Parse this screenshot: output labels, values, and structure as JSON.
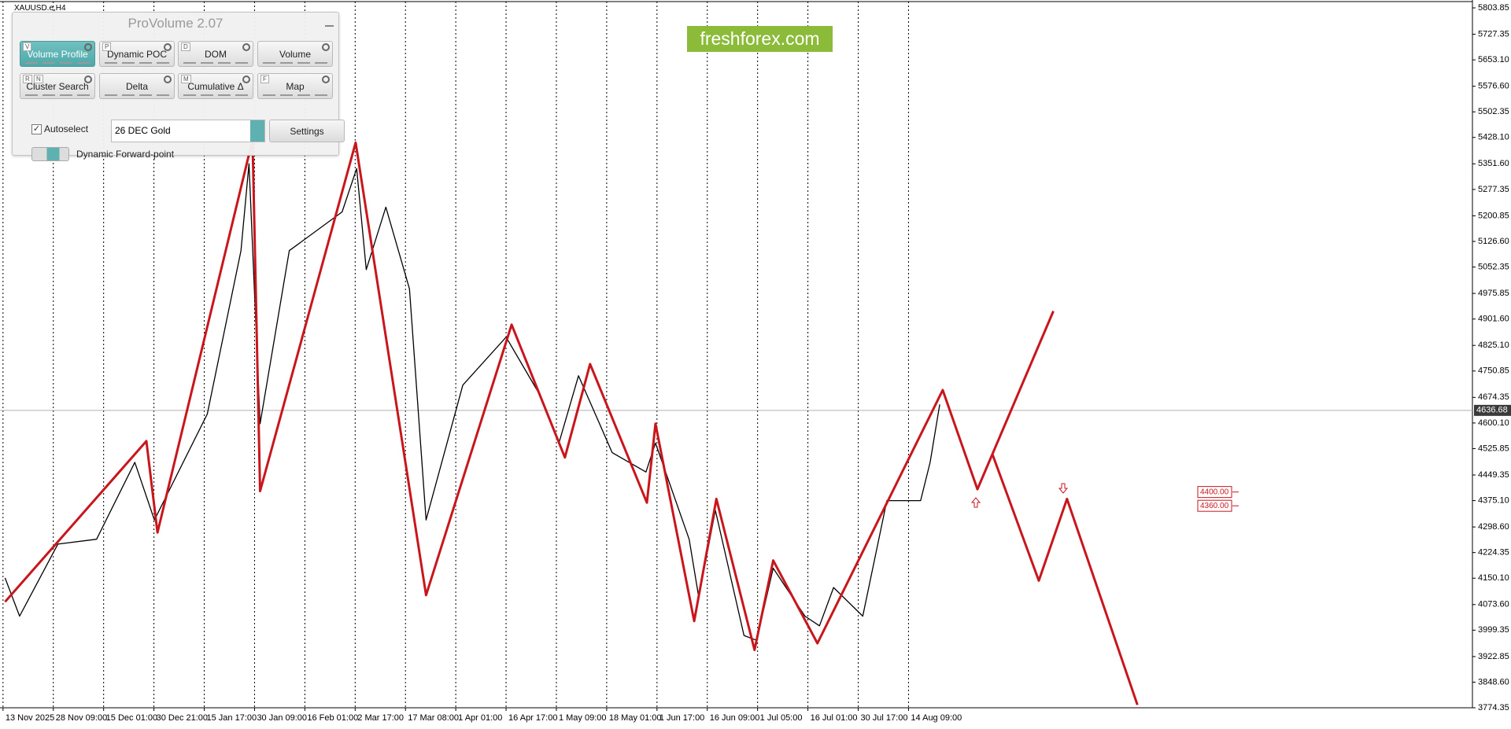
{
  "symbol": "XAUUSD.e,H4",
  "watermark": "freshforex.com",
  "panel": {
    "title": "ProVolume 2.07",
    "buttons": [
      {
        "keys": [
          "V"
        ],
        "label": "Volume Profile"
      },
      {
        "keys": [
          "P"
        ],
        "label": "Dynamic POC"
      },
      {
        "keys": [
          "D"
        ],
        "label": "DOM"
      },
      {
        "label": "Volume"
      },
      {
        "keys": [
          "R",
          "N"
        ],
        "label": "Cluster Search"
      },
      {
        "label": "Delta"
      },
      {
        "keys": [
          "M"
        ],
        "label": "Cumulative Δ"
      },
      {
        "keys": [
          "F"
        ],
        "label": "Map"
      }
    ],
    "autoselect": "Autoselect",
    "instrument": "26 DEC Gold",
    "settings": "Settings",
    "forward": "Dynamic Forward-point"
  },
  "chart_data": {
    "type": "line",
    "xlim": [
      -0.06,
      29.21
    ],
    "xticks": [
      {
        "value": 0,
        "label": "13 Nov 2025"
      },
      {
        "value": 1,
        "label": "28 Nov 09:00"
      },
      {
        "value": 2,
        "label": "15 Dec 01:00"
      },
      {
        "value": 3,
        "label": "30 Dec 21:00"
      },
      {
        "value": 4,
        "label": "15 Jan 17:00"
      },
      {
        "value": 5,
        "label": "30 Jan 09:00"
      },
      {
        "value": 6,
        "label": "16 Feb 01:00"
      },
      {
        "value": 7,
        "label": "2 Mar 17:00"
      },
      {
        "value": 8,
        "label": "17 Mar 08:00"
      },
      {
        "value": 9,
        "label": "1 Apr 01:00"
      },
      {
        "value": 10,
        "label": "16 Apr 17:00"
      },
      {
        "value": 11,
        "label": "1 May 09:00"
      },
      {
        "value": 12,
        "label": "18 May 01:00"
      },
      {
        "value": 13,
        "label": "1 Jun 17:00"
      },
      {
        "value": 14,
        "label": "16 Jun 09:00"
      },
      {
        "value": 15,
        "label": "1 Jul 05:00"
      },
      {
        "value": 16,
        "label": "16 Jul 01:00"
      },
      {
        "value": 17,
        "label": "30 Jul 17:00"
      },
      {
        "value": 18,
        "label": "14 Aug 09:00"
      }
    ],
    "ylim": [
      3774.35,
      5803.85
    ],
    "yticks": [
      5803.85,
      5727.35,
      {
        "value": 5653.1,
        "label": "5653.10"
      },
      {
        "value": 5576.6,
        "label": "5576.60"
      },
      5502.35,
      {
        "value": 5428.1,
        "label": "5428.10"
      },
      {
        "value": 5351.6,
        "label": "5351.60"
      },
      5277.35,
      5200.85,
      {
        "value": 5126.6,
        "label": "5126.60"
      },
      5052.35,
      4975.85,
      {
        "value": 4901.6,
        "label": "4901.60"
      },
      {
        "value": 4825.1,
        "label": "4825.10"
      },
      4750.85,
      4674.35,
      {
        "value": 4600.1,
        "label": "4600.10"
      },
      4525.85,
      4449.35,
      {
        "value": 4375.1,
        "label": "4375.10"
      },
      {
        "value": 4298.6,
        "label": "4298.60"
      },
      4224.35,
      {
        "value": 4150.1,
        "label": "4150.10"
      },
      {
        "value": 4073.6,
        "label": "4073.60"
      },
      3999.35,
      3922.85,
      {
        "value": 3848.6,
        "label": "3848.60"
      },
      3774.35
    ],
    "current_price": 4636.68,
    "levels": [
      {
        "value": 4400,
        "label": "4400.00"
      },
      {
        "value": 4360,
        "label": "4360.00"
      }
    ],
    "grid": true,
    "series": [
      {
        "color": "#000000",
        "x": [
          0.04,
          0.33,
          1.09,
          1.86,
          2.62,
          3.01,
          4.06,
          4.73,
          4.89,
          5.11,
          5.69,
          6.74,
          7.03,
          7.22,
          7.61,
          8.08,
          8.41,
          9.14,
          10.0,
          10.67,
          11.05,
          11.44,
          12.11,
          12.78,
          12.97,
          13.64,
          13.83,
          14.16,
          14.73,
          14.98,
          15.31,
          15.94,
          16.23,
          16.51,
          17.09,
          17.57,
          18.24,
          18.43,
          18.62
        ],
        "values": [
          4151,
          4040,
          4249,
          4263,
          4486,
          4319,
          4626,
          5100,
          5352,
          4598,
          5100,
          5212,
          5338,
          5045,
          5226,
          4989,
          4319,
          4710,
          4849,
          4682,
          4542,
          4737,
          4514,
          4458,
          4542,
          4263,
          4095,
          4347,
          3984,
          3970,
          4179,
          4040,
          4012,
          4123,
          4040,
          4375,
          4375,
          4486,
          4654
        ]
      },
      {
        "color": "#c8161d",
        "x": [
          0.04,
          2.85,
          3.07,
          4.96,
          5.11,
          7.01,
          8.41,
          10.11,
          11.17,
          11.67,
          12.8,
          12.97,
          13.74,
          14.18,
          14.94,
          15.31,
          16.19,
          18.68,
          19.37,
          20.88
        ],
        "values": [
          4081.4,
          4547.6,
          4282.4,
          5421.4,
          4402.5,
          5413.0,
          4100.9,
          4885.4,
          4500.2,
          4771.0,
          4369.0,
          4597.9,
          4025.6,
          4380.1,
          3941.9,
          4201.5,
          3961.4,
          4695.6,
          4408.1,
          4924.5
        ]
      },
      {
        "color": "#c8161d",
        "x": [
          19.67,
          20.59,
          21.15,
          22.55
        ],
        "values": [
          4508.6,
          4142.9,
          4380.1,
          3782.7
        ]
      }
    ]
  }
}
